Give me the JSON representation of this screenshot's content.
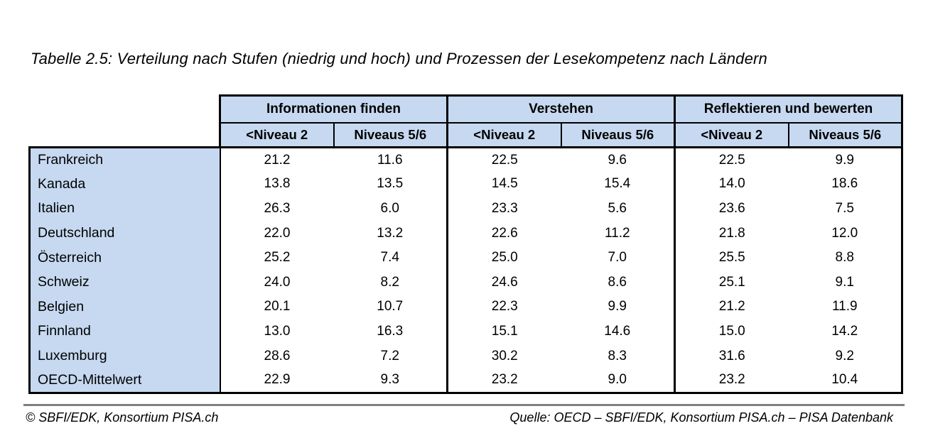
{
  "title": "Tabelle 2.5: Verteilung nach Stufen (niedrig und hoch) und Prozessen der Lesekompetenz nach Ländern",
  "table": {
    "groups": [
      {
        "label": "Informationen finden"
      },
      {
        "label": "Verstehen"
      },
      {
        "label": "Reflektieren und bewerten"
      }
    ],
    "subheaders": [
      "<Niveau 2",
      "Niveaus 5/6",
      "<Niveau 2",
      "Niveaus 5/6",
      "<Niveau 2",
      "Niveaus 5/6"
    ],
    "rows": [
      {
        "country": "Frankreich",
        "values": [
          "21.2",
          "11.6",
          "22.5",
          "9.6",
          "22.5",
          "9.9"
        ]
      },
      {
        "country": "Kanada",
        "values": [
          "13.8",
          "13.5",
          "14.5",
          "15.4",
          "14.0",
          "18.6"
        ]
      },
      {
        "country": "Italien",
        "values": [
          "26.3",
          "6.0",
          "23.3",
          "5.6",
          "23.6",
          "7.5"
        ]
      },
      {
        "country": "Deutschland",
        "values": [
          "22.0",
          "13.2",
          "22.6",
          "11.2",
          "21.8",
          "12.0"
        ]
      },
      {
        "country": "Österreich",
        "values": [
          "25.2",
          "7.4",
          "25.0",
          "7.0",
          "25.5",
          "8.8"
        ]
      },
      {
        "country": "Schweiz",
        "values": [
          "24.0",
          "8.2",
          "24.6",
          "8.6",
          "25.1",
          "9.1"
        ]
      },
      {
        "country": "Belgien",
        "values": [
          "20.1",
          "10.7",
          "22.3",
          "9.9",
          "21.2",
          "11.9"
        ]
      },
      {
        "country": "Finnland",
        "values": [
          "13.0",
          "16.3",
          "15.1",
          "14.6",
          "15.0",
          "14.2"
        ]
      },
      {
        "country": "Luxemburg",
        "values": [
          "28.6",
          "7.2",
          "30.2",
          "8.3",
          "31.6",
          "9.2"
        ]
      },
      {
        "country": "OECD-Mittelwert",
        "values": [
          "22.9",
          "9.3",
          "23.2",
          "9.0",
          "23.2",
          "10.4"
        ]
      }
    ]
  },
  "footer": {
    "left": "© SBFI/EDK, Konsortium PISA.ch",
    "right": "Quelle: OECD – SBFI/EDK, Konsortium PISA.ch – PISA Datenbank"
  },
  "colors": {
    "header_fill": "#c6d9f1",
    "row_label_fill": "#c6d9f1",
    "border": "#000000",
    "footer_line": "#808080",
    "text": "#000000"
  }
}
